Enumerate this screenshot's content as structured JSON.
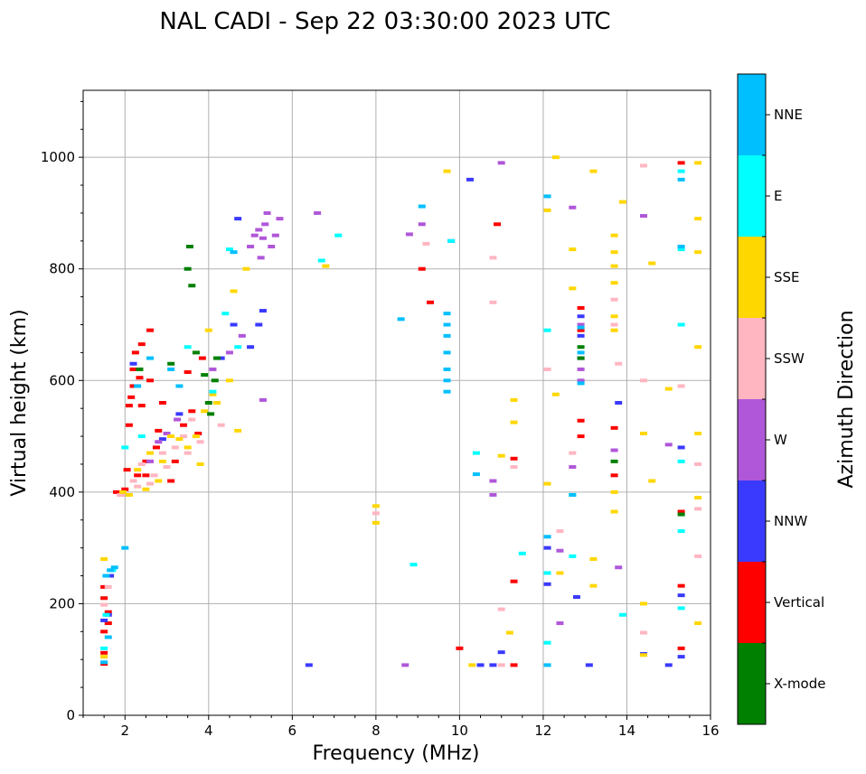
{
  "chart_data": {
    "type": "scatter",
    "title": "NAL CADI - Sep 22 03:30:00 2023 UTC",
    "xlabel": "Frequency (MHz)",
    "ylabel": "Virtual height (km)",
    "xlim": [
      1,
      16
    ],
    "ylim": [
      0,
      1120
    ],
    "xticks": [
      2,
      4,
      6,
      8,
      10,
      12,
      14,
      16
    ],
    "yticks": [
      0,
      200,
      400,
      600,
      800,
      1000
    ],
    "grid": true,
    "colorbar": {
      "title": "Azimuth Direction",
      "categories": [
        {
          "name": "X-mode",
          "color": "#008000"
        },
        {
          "name": "Vertical",
          "color": "#ff0000"
        },
        {
          "name": "NNW",
          "color": "#3a3aff"
        },
        {
          "name": "W",
          "color": "#b057d9"
        },
        {
          "name": "SSW",
          "color": "#ffb6c1"
        },
        {
          "name": "SSE",
          "color": "#ffd700"
        },
        {
          "name": "E",
          "color": "#00ffff"
        },
        {
          "name": "NNE",
          "color": "#00bfff"
        }
      ]
    },
    "series": [
      {
        "name": "Vertical",
        "points": [
          [
            1.5,
            92
          ],
          [
            1.5,
            112
          ],
          [
            1.5,
            150
          ],
          [
            1.5,
            210
          ],
          [
            1.5,
            230
          ],
          [
            1.6,
            165
          ],
          [
            1.6,
            185
          ],
          [
            1.8,
            400
          ],
          [
            1.9,
            395
          ],
          [
            2.0,
            405
          ],
          [
            2.05,
            440
          ],
          [
            2.1,
            520
          ],
          [
            2.1,
            555
          ],
          [
            2.15,
            570
          ],
          [
            2.2,
            590
          ],
          [
            2.2,
            620
          ],
          [
            2.25,
            650
          ],
          [
            2.3,
            430
          ],
          [
            2.35,
            605
          ],
          [
            2.4,
            555
          ],
          [
            2.4,
            665
          ],
          [
            2.5,
            430
          ],
          [
            2.5,
            455
          ],
          [
            2.6,
            600
          ],
          [
            2.6,
            690
          ],
          [
            2.75,
            480
          ],
          [
            2.8,
            510
          ],
          [
            2.9,
            560
          ],
          [
            3.1,
            420
          ],
          [
            3.2,
            455
          ],
          [
            3.4,
            520
          ],
          [
            3.5,
            615
          ],
          [
            3.6,
            545
          ],
          [
            3.75,
            505
          ],
          [
            3.85,
            640
          ],
          [
            9.1,
            800
          ],
          [
            9.3,
            740
          ],
          [
            10.0,
            120
          ],
          [
            10.9,
            880
          ],
          [
            11.3,
            90
          ],
          [
            11.3,
            460
          ],
          [
            11.3,
            240
          ],
          [
            12.9,
            500
          ],
          [
            12.9,
            528
          ],
          [
            12.9,
            690
          ],
          [
            12.9,
            730
          ],
          [
            13.7,
            515
          ],
          [
            13.7,
            430
          ],
          [
            15.3,
            990
          ],
          [
            15.3,
            365
          ],
          [
            15.3,
            232
          ],
          [
            15.3,
            120
          ]
        ]
      },
      {
        "name": "NNW",
        "points": [
          [
            1.5,
            170
          ],
          [
            1.6,
            180
          ],
          [
            1.65,
            250
          ],
          [
            2.2,
            630
          ],
          [
            2.9,
            495
          ],
          [
            3.3,
            540
          ],
          [
            4.3,
            640
          ],
          [
            4.6,
            700
          ],
          [
            4.7,
            890
          ],
          [
            5.0,
            660
          ],
          [
            5.2,
            700
          ],
          [
            5.3,
            725
          ],
          [
            6.4,
            90
          ],
          [
            9.8,
            850
          ],
          [
            10.25,
            960
          ],
          [
            10.5,
            90
          ],
          [
            10.8,
            90
          ],
          [
            11.0,
            113
          ],
          [
            12.1,
            300
          ],
          [
            12.1,
            235
          ],
          [
            12.8,
            212
          ],
          [
            12.9,
            640
          ],
          [
            12.9,
            680
          ],
          [
            12.9,
            715
          ],
          [
            13.1,
            90
          ],
          [
            13.8,
            560
          ],
          [
            14.4,
            110
          ],
          [
            15.0,
            90
          ],
          [
            15.3,
            480
          ],
          [
            15.3,
            215
          ],
          [
            15.3,
            105
          ]
        ]
      },
      {
        "name": "W",
        "points": [
          [
            2.6,
            455
          ],
          [
            2.8,
            490
          ],
          [
            3.0,
            505
          ],
          [
            3.25,
            530
          ],
          [
            4.1,
            620
          ],
          [
            4.5,
            650
          ],
          [
            4.8,
            680
          ],
          [
            5.0,
            840
          ],
          [
            5.1,
            860
          ],
          [
            5.2,
            870
          ],
          [
            5.25,
            820
          ],
          [
            5.3,
            855
          ],
          [
            5.35,
            880
          ],
          [
            5.4,
            900
          ],
          [
            5.5,
            840
          ],
          [
            5.6,
            860
          ],
          [
            5.7,
            890
          ],
          [
            5.3,
            565
          ],
          [
            6.6,
            900
          ],
          [
            8.7,
            90
          ],
          [
            8.8,
            862
          ],
          [
            9.1,
            880
          ],
          [
            10.8,
            420
          ],
          [
            10.8,
            395
          ],
          [
            11.0,
            990
          ],
          [
            12.4,
            295
          ],
          [
            12.4,
            165
          ],
          [
            12.7,
            910
          ],
          [
            12.7,
            445
          ],
          [
            12.9,
            600
          ],
          [
            12.9,
            620
          ],
          [
            12.9,
            700
          ],
          [
            13.7,
            475
          ],
          [
            13.8,
            265
          ],
          [
            14.4,
            895
          ],
          [
            15.0,
            485
          ]
        ]
      },
      {
        "name": "SSW",
        "points": [
          [
            1.5,
            198
          ],
          [
            1.6,
            230
          ],
          [
            1.9,
            395
          ],
          [
            2.2,
            420
          ],
          [
            2.3,
            410
          ],
          [
            2.4,
            450
          ],
          [
            2.6,
            415
          ],
          [
            2.7,
            430
          ],
          [
            2.9,
            470
          ],
          [
            3.0,
            445
          ],
          [
            3.2,
            480
          ],
          [
            3.4,
            500
          ],
          [
            3.5,
            470
          ],
          [
            3.6,
            530
          ],
          [
            3.8,
            490
          ],
          [
            4.3,
            520
          ],
          [
            8.0,
            362
          ],
          [
            9.2,
            845
          ],
          [
            10.8,
            740
          ],
          [
            10.8,
            820
          ],
          [
            11.0,
            190
          ],
          [
            11.0,
            90
          ],
          [
            11.3,
            445
          ],
          [
            12.1,
            620
          ],
          [
            12.4,
            330
          ],
          [
            12.7,
            470
          ],
          [
            13.7,
            700
          ],
          [
            13.7,
            745
          ],
          [
            13.8,
            630
          ],
          [
            14.4,
            985
          ],
          [
            14.4,
            148
          ],
          [
            14.4,
            600
          ],
          [
            15.3,
            590
          ],
          [
            15.7,
            450
          ],
          [
            15.7,
            370
          ],
          [
            15.7,
            285
          ]
        ]
      },
      {
        "name": "SSE",
        "points": [
          [
            1.5,
            105
          ],
          [
            1.5,
            280
          ],
          [
            1.95,
            400
          ],
          [
            2.1,
            395
          ],
          [
            2.3,
            440
          ],
          [
            2.5,
            405
          ],
          [
            2.6,
            470
          ],
          [
            2.8,
            420
          ],
          [
            2.9,
            455
          ],
          [
            3.1,
            500
          ],
          [
            3.3,
            495
          ],
          [
            3.5,
            480
          ],
          [
            3.7,
            500
          ],
          [
            3.8,
            450
          ],
          [
            3.9,
            545
          ],
          [
            4.0,
            690
          ],
          [
            4.1,
            575
          ],
          [
            4.2,
            560
          ],
          [
            4.5,
            600
          ],
          [
            4.6,
            760
          ],
          [
            4.7,
            510
          ],
          [
            4.9,
            800
          ],
          [
            6.8,
            805
          ],
          [
            8.0,
            345
          ],
          [
            8.0,
            375
          ],
          [
            9.7,
            975
          ],
          [
            10.3,
            90
          ],
          [
            11.0,
            465
          ],
          [
            11.2,
            148
          ],
          [
            11.3,
            565
          ],
          [
            11.3,
            525
          ],
          [
            12.1,
            905
          ],
          [
            12.1,
            415
          ],
          [
            12.3,
            1000
          ],
          [
            12.3,
            575
          ],
          [
            12.4,
            255
          ],
          [
            12.7,
            835
          ],
          [
            12.7,
            765
          ],
          [
            13.2,
            975
          ],
          [
            13.2,
            280
          ],
          [
            13.2,
            232
          ],
          [
            13.7,
            860
          ],
          [
            13.7,
            830
          ],
          [
            13.7,
            805
          ],
          [
            13.7,
            775
          ],
          [
            13.7,
            715
          ],
          [
            13.7,
            690
          ],
          [
            13.7,
            400
          ],
          [
            13.7,
            365
          ],
          [
            13.9,
            920
          ],
          [
            14.4,
            505
          ],
          [
            14.4,
            200
          ],
          [
            14.4,
            108
          ],
          [
            14.6,
            810
          ],
          [
            14.6,
            420
          ],
          [
            15.0,
            585
          ],
          [
            15.7,
            990
          ],
          [
            15.7,
            890
          ],
          [
            15.7,
            830
          ],
          [
            15.7,
            660
          ],
          [
            15.7,
            505
          ],
          [
            15.7,
            390
          ],
          [
            15.7,
            165
          ]
        ]
      },
      {
        "name": "E",
        "points": [
          [
            1.5,
            120
          ],
          [
            1.55,
            180
          ],
          [
            1.7,
            260
          ],
          [
            2.0,
            480
          ],
          [
            2.4,
            500
          ],
          [
            3.5,
            660
          ],
          [
            4.1,
            580
          ],
          [
            4.4,
            720
          ],
          [
            4.5,
            835
          ],
          [
            4.7,
            660
          ],
          [
            6.7,
            815
          ],
          [
            7.1,
            860
          ],
          [
            8.9,
            270
          ],
          [
            9.8,
            850
          ],
          [
            10.4,
            470
          ],
          [
            11.5,
            290
          ],
          [
            12.1,
            130
          ],
          [
            12.1,
            255
          ],
          [
            12.1,
            690
          ],
          [
            12.7,
            395
          ],
          [
            12.7,
            285
          ],
          [
            13.9,
            180
          ],
          [
            15.3,
            975
          ],
          [
            15.3,
            835
          ],
          [
            15.3,
            700
          ],
          [
            15.3,
            455
          ],
          [
            15.3,
            330
          ],
          [
            15.3,
            192
          ]
        ]
      },
      {
        "name": "NNE",
        "points": [
          [
            1.5,
            95
          ],
          [
            1.55,
            250
          ],
          [
            1.6,
            140
          ],
          [
            1.65,
            260
          ],
          [
            1.75,
            265
          ],
          [
            2.0,
            300
          ],
          [
            2.3,
            590
          ],
          [
            2.6,
            640
          ],
          [
            3.1,
            620
          ],
          [
            3.3,
            590
          ],
          [
            4.6,
            830
          ],
          [
            9.1,
            912
          ],
          [
            9.7,
            580
          ],
          [
            9.7,
            600
          ],
          [
            9.7,
            620
          ],
          [
            9.7,
            650
          ],
          [
            9.7,
            680
          ],
          [
            9.7,
            700
          ],
          [
            9.7,
            720
          ],
          [
            8.6,
            710
          ],
          [
            10.4,
            432
          ],
          [
            12.1,
            930
          ],
          [
            12.1,
            320
          ],
          [
            12.1,
            90
          ],
          [
            12.7,
            395
          ],
          [
            12.9,
            595
          ],
          [
            12.9,
            650
          ],
          [
            12.9,
            695
          ],
          [
            15.3,
            960
          ],
          [
            15.3,
            840
          ]
        ]
      },
      {
        "name": "X-mode",
        "points": [
          [
            2.35,
            620
          ],
          [
            3.1,
            630
          ],
          [
            3.5,
            800
          ],
          [
            3.55,
            840
          ],
          [
            3.6,
            770
          ],
          [
            3.7,
            650
          ],
          [
            3.9,
            610
          ],
          [
            4.0,
            560
          ],
          [
            4.05,
            540
          ],
          [
            4.15,
            600
          ],
          [
            4.2,
            640
          ],
          [
            12.9,
            660
          ],
          [
            12.9,
            640
          ],
          [
            13.7,
            455
          ],
          [
            15.3,
            360
          ]
        ]
      }
    ]
  }
}
